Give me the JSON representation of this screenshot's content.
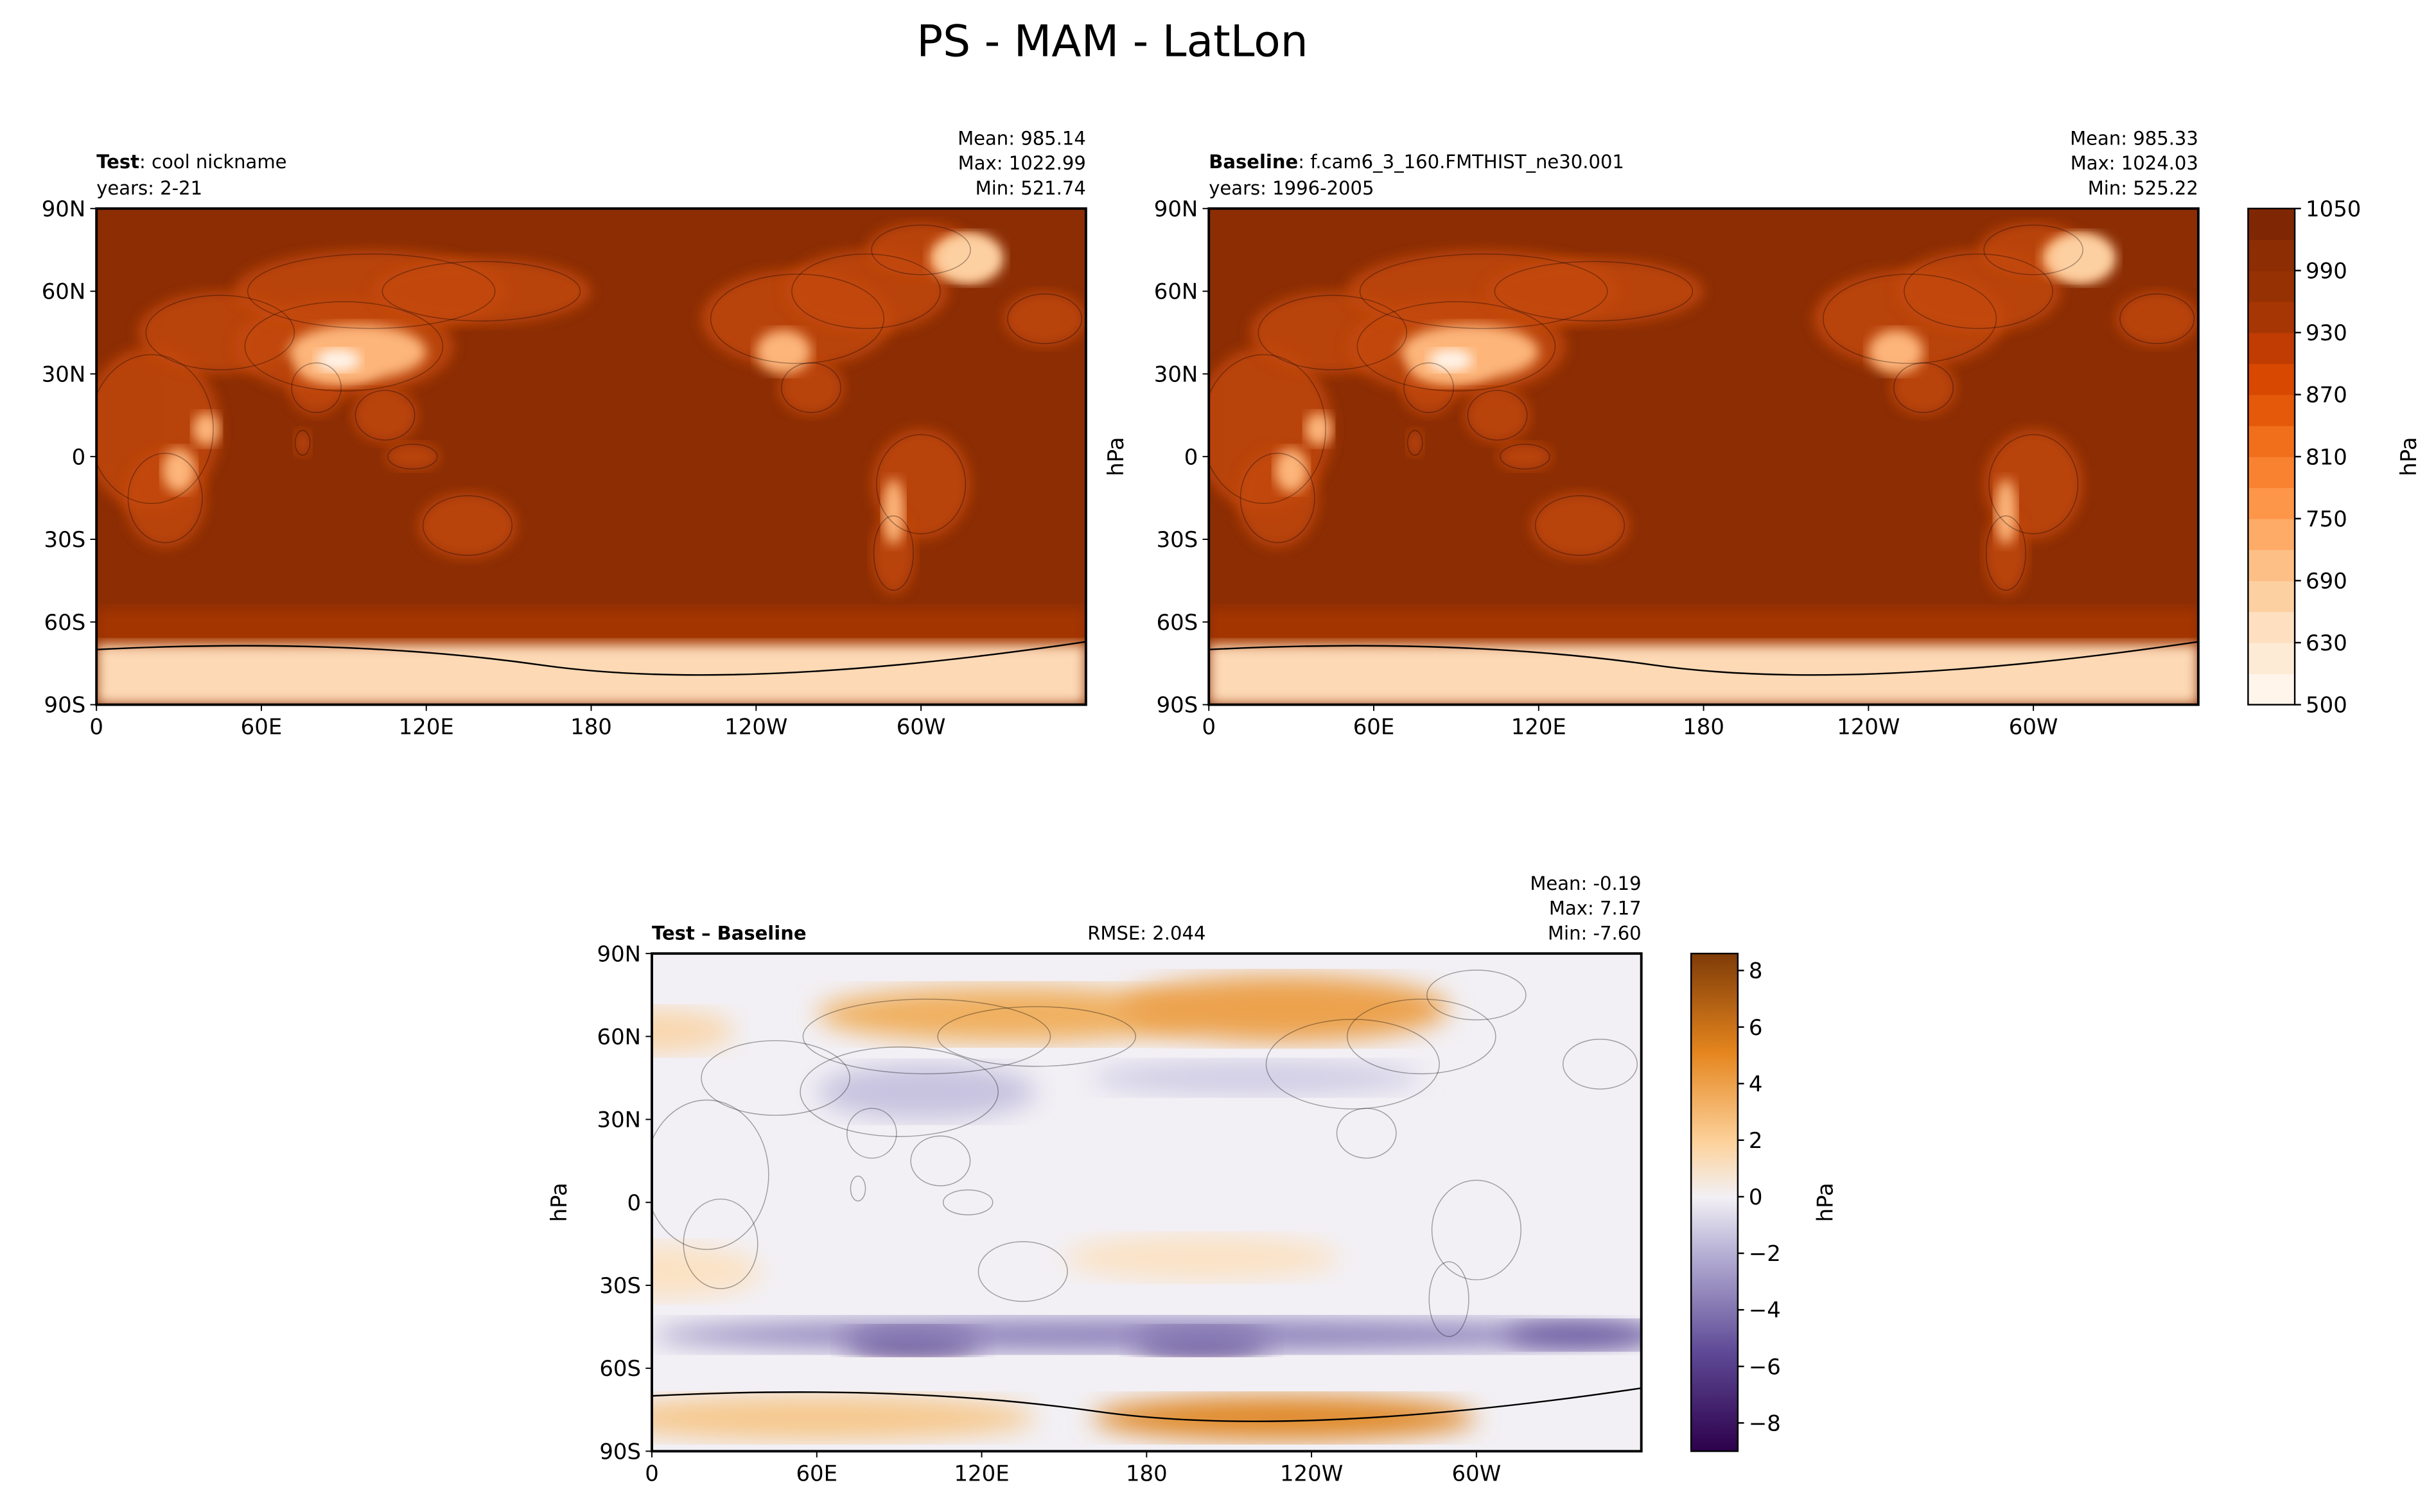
{
  "title": "PS - MAM - LatLon",
  "colors": {
    "ocean": "#8c2d04",
    "ocean_dark": "#7f2704",
    "diff_neutral": "#f2f0f5"
  },
  "chart_data": [
    {
      "type": "heatmap",
      "panel": "test",
      "label_bold": "Test",
      "label_rest": ": cool nickname",
      "years": "years: 2-21",
      "stats": [
        "Mean: 985.14",
        "Max: 1022.99",
        "Min: 521.74"
      ],
      "xticks": [
        "0",
        "60E",
        "120E",
        "180",
        "120W",
        "60W"
      ],
      "xtick_values": [
        0,
        60,
        120,
        180,
        240,
        300
      ],
      "yticks": [
        "90N",
        "60N",
        "30N",
        "0",
        "30S",
        "60S",
        "90S"
      ],
      "ytick_values": [
        90,
        60,
        30,
        0,
        -30,
        -60,
        -90
      ],
      "xlim": [
        0,
        360
      ],
      "ylim": [
        -90,
        90
      ]
    },
    {
      "type": "heatmap",
      "panel": "baseline",
      "label_bold": "Baseline",
      "label_rest": ": f.cam6_3_160.FMTHIST_ne30.001",
      "years": "years: 1996-2005",
      "ylabel": "hPa",
      "stats": [
        "Mean: 985.33",
        "Max: 1024.03",
        "Min: 525.22"
      ],
      "xticks": [
        "0",
        "60E",
        "120E",
        "180",
        "120W",
        "60W"
      ],
      "xtick_values": [
        0,
        60,
        120,
        180,
        240,
        300
      ],
      "yticks": [
        "90N",
        "60N",
        "30N",
        "0",
        "30S",
        "60S",
        "90S"
      ],
      "ytick_values": [
        90,
        60,
        30,
        0,
        -30,
        -60,
        -90
      ],
      "xlim": [
        0,
        360
      ],
      "ylim": [
        -90,
        90
      ]
    },
    {
      "type": "heatmap",
      "panel": "difference",
      "label_bold": "Test – Baseline",
      "rmse": "RMSE: 2.044",
      "ylabel": "hPa",
      "stats": [
        "Mean: -0.19",
        "Max:  7.17",
        "Min: -7.60"
      ],
      "xticks": [
        "0",
        "60E",
        "120E",
        "180",
        "120W",
        "60W"
      ],
      "xtick_values": [
        0,
        60,
        120,
        180,
        240,
        300
      ],
      "yticks": [
        "90N",
        "60N",
        "30N",
        "0",
        "30S",
        "60S",
        "90S"
      ],
      "ytick_values": [
        90,
        60,
        30,
        0,
        -30,
        -60,
        -90
      ],
      "xlim": [
        0,
        360
      ],
      "ylim": [
        -90,
        90
      ]
    }
  ],
  "colorbars": {
    "main": {
      "label": "hPa",
      "levels": [
        500,
        600,
        630,
        660,
        690,
        720,
        750,
        780,
        810,
        840,
        870,
        900,
        930,
        960,
        990,
        1020,
        1050
      ],
      "tick_labels": [
        "500",
        "630",
        "690",
        "750",
        "810",
        "870",
        "930",
        "990",
        "1050"
      ],
      "tick_values": [
        500,
        630,
        690,
        750,
        810,
        870,
        930,
        990,
        1050
      ],
      "colors": [
        "#fff5eb",
        "#feebd6",
        "#fee0c1",
        "#fdd0a2",
        "#fdbf86",
        "#fdab67",
        "#fd9649",
        "#f98230",
        "#f16f1a",
        "#e5590a",
        "#d84801",
        "#c03c02",
        "#a63603",
        "#963103",
        "#8c2d04",
        "#7f2704"
      ]
    },
    "diff": {
      "label": "hPa",
      "range": [
        -9,
        8.6
      ],
      "tick_labels": [
        "−8",
        "−6",
        "−4",
        "−2",
        "0",
        "2",
        "4",
        "6",
        "8"
      ],
      "tick_values": [
        -8,
        -6,
        -4,
        -2,
        0,
        2,
        4,
        6,
        8
      ]
    }
  }
}
